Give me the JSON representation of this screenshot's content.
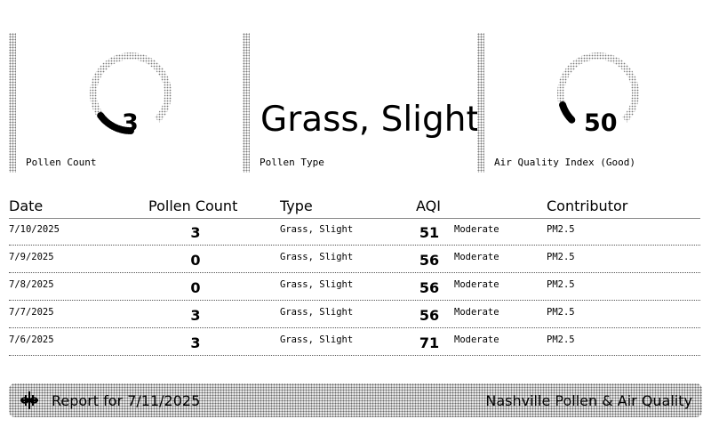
{
  "cards": {
    "pollen_count": {
      "value": "3",
      "label": "Pollen Count",
      "level": 0.2
    },
    "pollen_type": {
      "value": "Grass, Slight",
      "label": "Pollen Type"
    },
    "aqi": {
      "value": "50",
      "label": "Air Quality Index (Good)",
      "level": 0.1
    }
  },
  "table": {
    "headers": {
      "date": "Date",
      "pollen_count": "Pollen Count",
      "type": "Type",
      "aqi": "AQI",
      "contributor": "Contributor"
    },
    "rows": [
      {
        "date": "7/10/2025",
        "count": "3",
        "type": "Grass, Slight",
        "aqi": "51",
        "category": "Moderate",
        "contributor": "PM2.5"
      },
      {
        "date": "7/9/2025",
        "count": "0",
        "type": "Grass, Slight",
        "aqi": "56",
        "category": "Moderate",
        "contributor": "PM2.5"
      },
      {
        "date": "7/8/2025",
        "count": "0",
        "type": "Grass, Slight",
        "aqi": "56",
        "category": "Moderate",
        "contributor": "PM2.5"
      },
      {
        "date": "7/7/2025",
        "count": "3",
        "type": "Grass, Slight",
        "aqi": "56",
        "category": "Moderate",
        "contributor": "PM2.5"
      },
      {
        "date": "7/6/2025",
        "count": "3",
        "type": "Grass, Slight",
        "aqi": "71",
        "category": "Moderate",
        "contributor": "PM2.5"
      }
    ]
  },
  "footer": {
    "report_label": "Report for 7/11/2025",
    "title": "Nashville Pollen & Air Quality",
    "logo_icon": "pollen-flower-icon"
  }
}
